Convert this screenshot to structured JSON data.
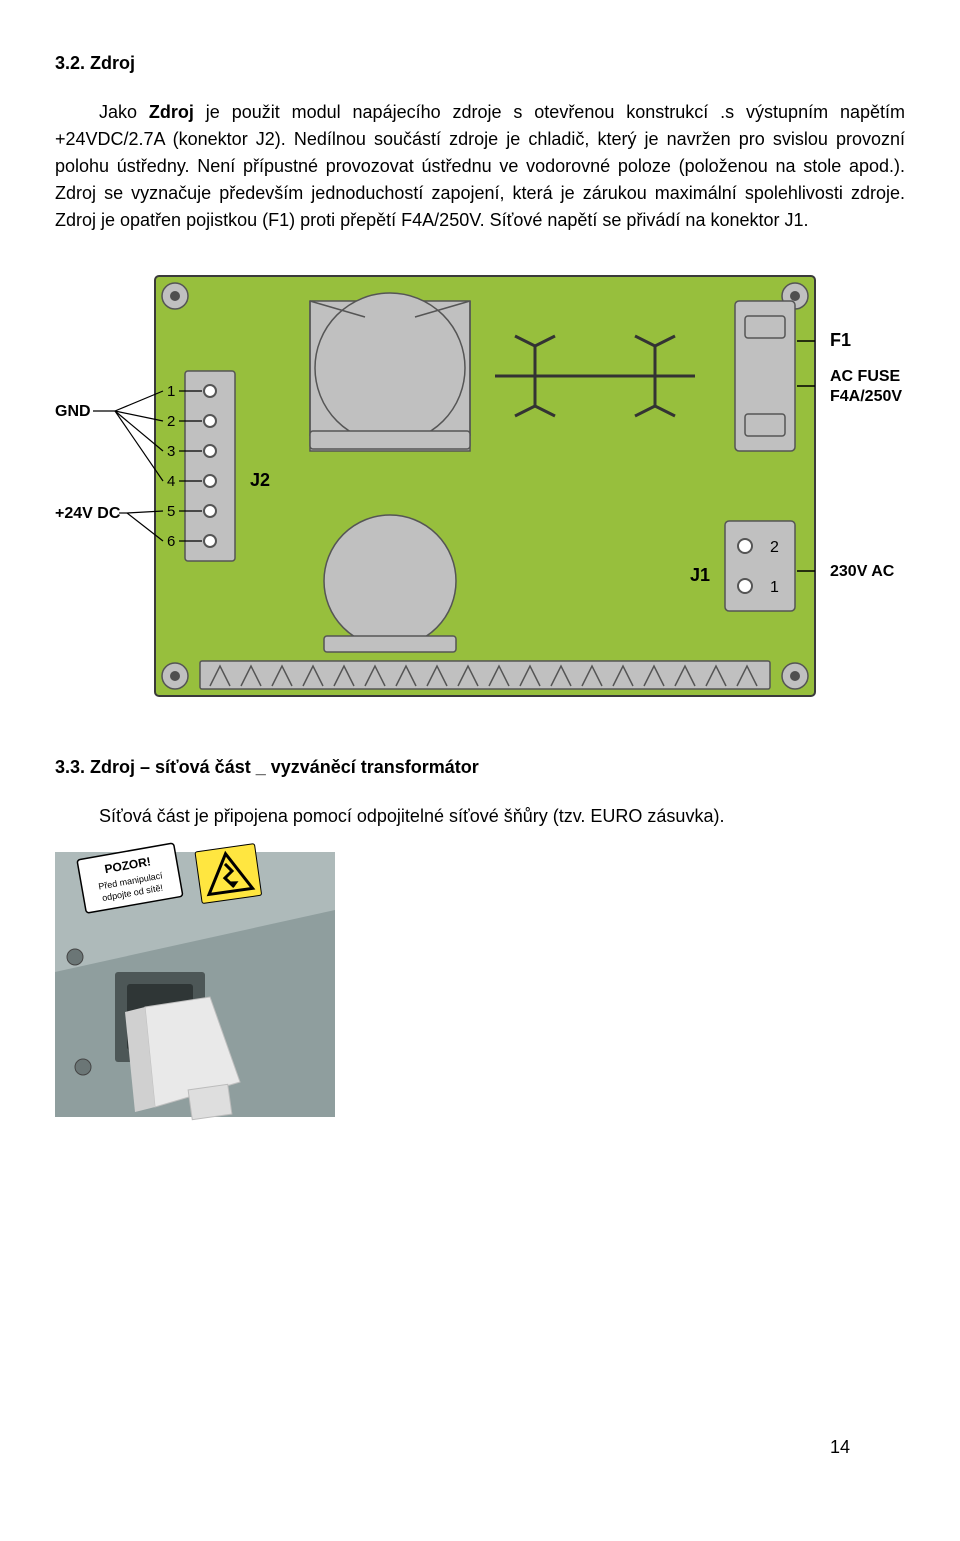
{
  "section1": {
    "heading": "3.2. Zdroj",
    "para1_prefix": "Jako ",
    "para1_bold": "Zdroj",
    "para1_rest": " je použit modul napájecího zdroje s otevřenou konstrukcí .s výstupním napětím +24VDC/2.7A (konektor J2). Nedílnou součástí zdroje je chladič, který je navržen pro svislou provozní polohu ústředny. Není přípustné provozovat ústřednu ve vodorovné poloze (položenou na stole apod.). Zdroj se vyznačuje především jednoduchostí zapojení, která je zárukou maximální spolehlivosti zdroje. Zdroj je opatřen pojistkou (F1) proti přepětí F4A/250V. Síťové napětí se přivádí na konektor J1."
  },
  "pcb": {
    "board_fill": "#97bf3d",
    "board_stroke": "#3a3a3a",
    "board_stroke_w": 2,
    "screw_fill": "#c0c0c0",
    "screw_stroke": "#555555",
    "hole_fill": "#4f4f4f",
    "comp_fill": "#c0c0c0",
    "comp_stroke": "#555555",
    "lead_stroke": "#333333",
    "text_color": "#000000",
    "left_labels": {
      "gnd": "GND",
      "vdc": "+24V DC",
      "j2": "J2",
      "pins": [
        "1",
        "2",
        "3",
        "4",
        "5",
        "6"
      ]
    },
    "right_labels": {
      "f1": "F1",
      "fuse_l1": "AC FUSE",
      "fuse_l2": "F4A/250V",
      "j1": "J1",
      "j1p1": "1",
      "j1p2": "2",
      "ac": "230V AC"
    }
  },
  "section2": {
    "heading": "3.3. Zdroj – síťová část _ vyzváněcí transformátor",
    "para": "Síťová část je připojena pomocí odpojitelné síťové šňůry (tzv. EURO zásuvka)."
  },
  "photo": {
    "bg": "#9aa9a9",
    "panel": "#b9c3c3",
    "label_bg": "#ffffff",
    "label_border": "#000000",
    "label_title": "POZOR!",
    "label_l1": "Před manipulací",
    "label_l2": "odpojte od sítě!",
    "warn_bg": "#ffe640",
    "warn_border": "#000000",
    "plug": "#eaeaea",
    "plug_shadow": "#cfcfcf"
  },
  "page_number": "14"
}
